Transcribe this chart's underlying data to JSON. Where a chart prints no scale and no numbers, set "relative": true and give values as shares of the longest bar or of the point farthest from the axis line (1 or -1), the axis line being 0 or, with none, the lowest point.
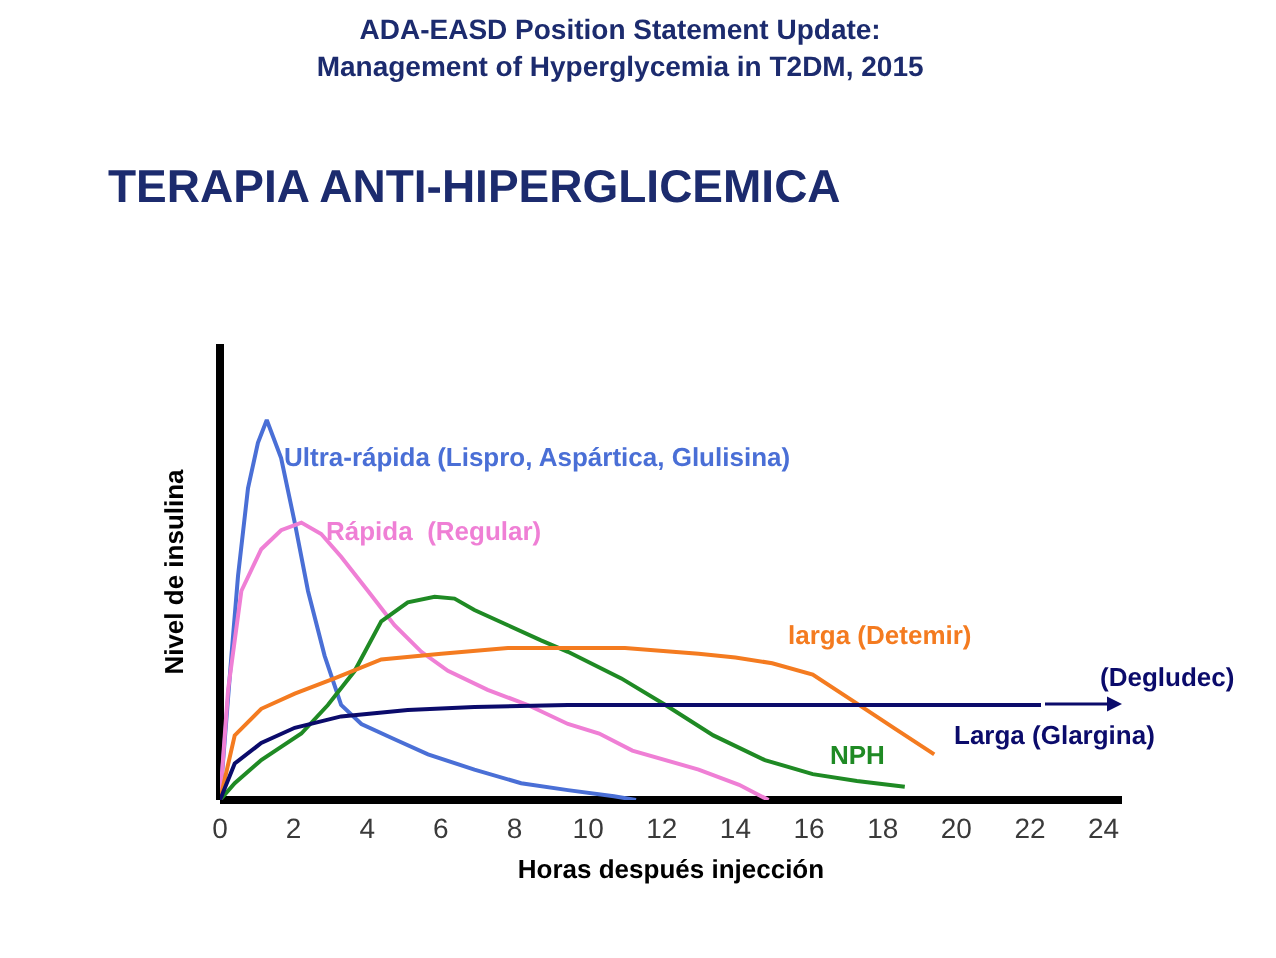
{
  "chart_data": {
    "type": "line",
    "relative": true,
    "title": "ADA-EASD Position Statement Update:\nManagement of Hyperglycemia in T2DM, 2015",
    "subtitle": "TERAPIA ANTI-HIPERGLICEMICA",
    "xlabel": "Horas después injección",
    "ylabel": "Nivel de insulina",
    "xlim": [
      0,
      24.5
    ],
    "xticks": [
      0,
      2,
      4,
      6,
      8,
      10,
      12,
      14,
      16,
      18,
      20,
      22,
      24
    ],
    "annotations": [
      "(Degludec)"
    ],
    "series": [
      {
        "name": "Ultra-rápida (Lispro, Aspártica, Glulisina)",
        "color": "#4a6fd6",
        "x": [
          0,
          0.31,
          0.49,
          0.76,
          1.03,
          1.27,
          1.66,
          2.03,
          2.39,
          2.84,
          3.29,
          3.84,
          4.74,
          5.65,
          6.91,
          8.18,
          9.45,
          10.7,
          11.3
        ],
        "values": [
          0,
          0.38,
          0.59,
          0.82,
          0.94,
          1,
          0.9,
          0.73,
          0.55,
          0.38,
          0.25,
          0.2,
          0.16,
          0.12,
          0.08,
          0.044,
          0.026,
          0.01,
          0
        ]
      },
      {
        "name": "Rápida  (Regular)",
        "color": "#ef7fd5",
        "x": [
          0,
          0.22,
          0.58,
          1.12,
          1.66,
          2.21,
          2.75,
          3.29,
          4.02,
          4.74,
          5.47,
          6.19,
          7.27,
          8.36,
          9.45,
          10.3,
          11.2,
          13.0,
          14.1,
          14.9
        ],
        "values": [
          0,
          0.29,
          0.55,
          0.66,
          0.71,
          0.73,
          0.7,
          0.64,
          0.55,
          0.46,
          0.39,
          0.34,
          0.29,
          0.25,
          0.2,
          0.175,
          0.13,
          0.08,
          0.04,
          0
        ]
      },
      {
        "name": "NPH",
        "color": "#1f8a24",
        "x": [
          0,
          0.4,
          1.12,
          1.66,
          2.21,
          2.93,
          3.66,
          4.38,
          5.1,
          5.83,
          6.37,
          6.91,
          7.82,
          8.72,
          9.45,
          10.9,
          12.1,
          13.4,
          14.8,
          16.1,
          17.3,
          18.6
        ],
        "values": [
          0,
          0.044,
          0.105,
          0.14,
          0.175,
          0.25,
          0.34,
          0.47,
          0.52,
          0.535,
          0.53,
          0.5,
          0.46,
          0.42,
          0.39,
          0.32,
          0.25,
          0.17,
          0.105,
          0.068,
          0.05,
          0.035
        ]
      },
      {
        "name": "larga (Detemir)",
        "color": "#f47b20",
        "x": [
          0,
          0.4,
          1.12,
          2.03,
          3.11,
          4.38,
          6.01,
          7.82,
          9.45,
          11.0,
          12.3,
          13.0,
          14.0,
          15.0,
          16.1,
          17.2,
          18.3,
          19.4
        ],
        "values": [
          0,
          0.17,
          0.24,
          0.28,
          0.32,
          0.37,
          0.385,
          0.4,
          0.4,
          0.4,
          0.39,
          0.385,
          0.375,
          0.36,
          0.33,
          0.26,
          0.19,
          0.12
        ]
      },
      {
        "name": "Larga (Glargina)",
        "color": "#0b0b6b",
        "x": [
          0,
          0.4,
          1.12,
          2.03,
          3.29,
          5.1,
          6.91,
          9.45,
          14.1,
          22.3
        ],
        "values": [
          0,
          0.096,
          0.15,
          0.19,
          0.22,
          0.237,
          0.245,
          0.25,
          0.25,
          0.25
        ]
      }
    ]
  }
}
